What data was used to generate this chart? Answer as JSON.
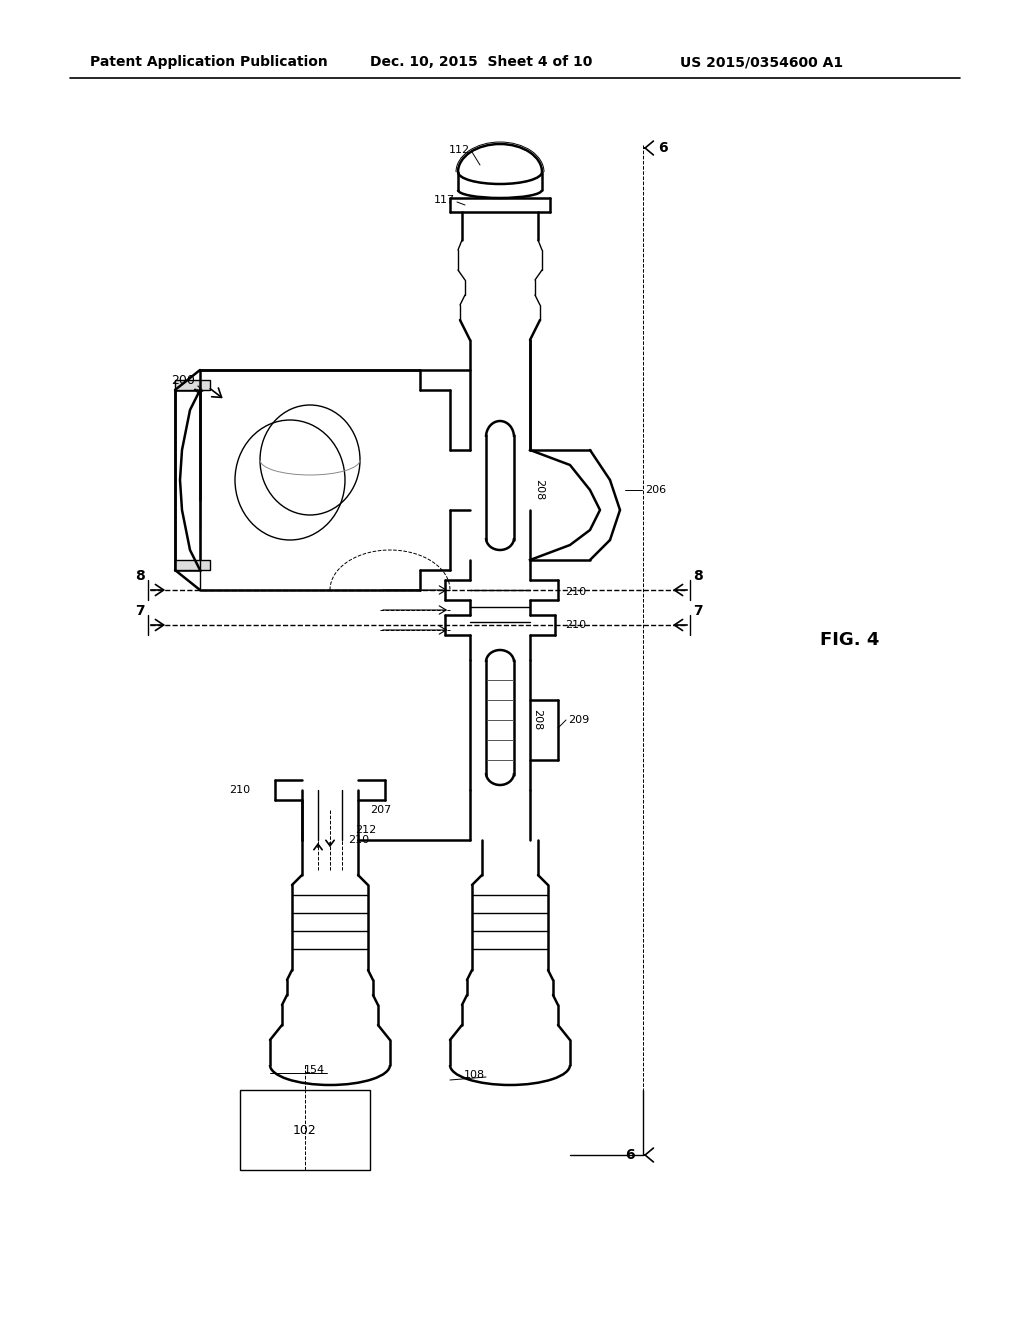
{
  "header_left": "Patent Application Publication",
  "header_mid": "Dec. 10, 2015  Sheet 4 of 10",
  "header_right": "US 2015/0354600 A1",
  "fig_label": "FIG. 4",
  "bg_color": "#ffffff",
  "line_color": "#000000"
}
